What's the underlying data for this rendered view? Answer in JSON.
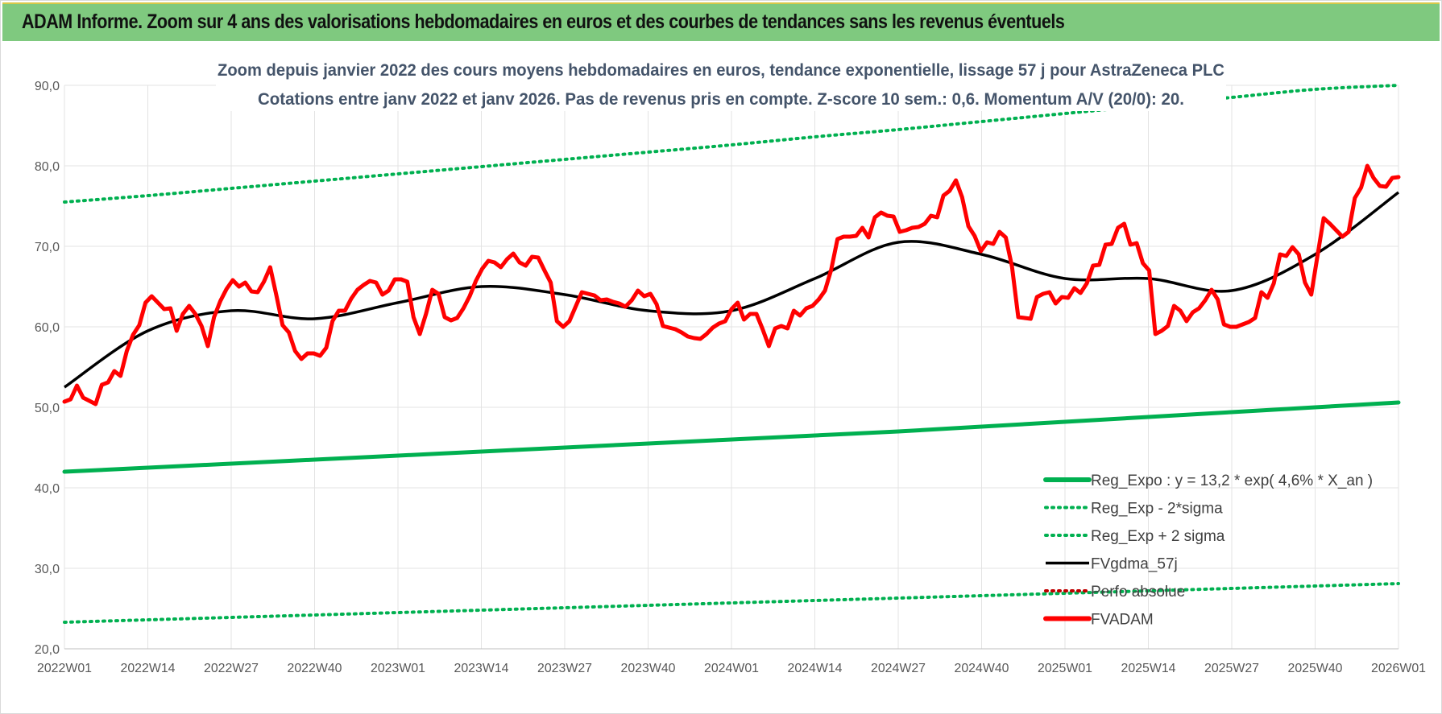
{
  "header": {
    "title": "ADAM Informe. Zoom sur 4 ans des valorisations hebdomadaires en euros et des courbes de tendances sans les revenus éventuels"
  },
  "colors": {
    "banner": "#7fc97f",
    "red_series": "#ff0000",
    "black_series": "#000000",
    "green_series": "#00b050",
    "dotted_green": "#00b050",
    "dotted_red": "#c00000",
    "title_text": "#44546a"
  },
  "chart_data": {
    "type": "line",
    "title_line1": "Zoom depuis janvier 2022 des cours moyens hebdomadaires en euros, tendance exponentielle, lissage 57 j pour AstraZeneca PLC",
    "title_line2": "Cotations entre janv 2022 et janv 2026. Pas de revenus pris en compte. Z-score 10 sem.: 0,6. Momentum A/V (20/0): 20.",
    "ylim": [
      20,
      90
    ],
    "yticks": [
      "20,0",
      "30,0",
      "40,0",
      "50,0",
      "60,0",
      "70,0",
      "80,0",
      "90,0"
    ],
    "ytick_values": [
      20,
      30,
      40,
      50,
      60,
      70,
      80,
      90
    ],
    "xlabels": [
      "2022W01",
      "2022W14",
      "2022W27",
      "2022W40",
      "2023W01",
      "2023W14",
      "2023W27",
      "2023W40",
      "2024W01",
      "2024W14",
      "2024W27",
      "2024W40",
      "2025W01",
      "2025W14",
      "2025W27",
      "2025W40",
      "2026W01"
    ],
    "grid": true,
    "legend_position": "bottom-right",
    "series": [
      {
        "name": "Reg_Expo : y = 13,2 * exp( 4,6% *  X_an )",
        "style": "solid-thick",
        "color": "#00b050",
        "values_at_labels": [
          42.0,
          42.5,
          43.0,
          43.5,
          44.0,
          44.5,
          45.0,
          45.5,
          46.0,
          46.5,
          47.0,
          47.6,
          48.2,
          48.8,
          49.4,
          50.0,
          50.6
        ]
      },
      {
        "name": "Reg_Exp - 2*sigma",
        "style": "dotted",
        "color": "#00b050",
        "values_at_labels": [
          23.3,
          23.6,
          23.9,
          24.2,
          24.5,
          24.8,
          25.1,
          25.4,
          25.7,
          26.0,
          26.3,
          26.6,
          26.9,
          27.2,
          27.5,
          27.8,
          28.1
        ]
      },
      {
        "name": "Reg_Exp + 2 sigma",
        "style": "dotted",
        "color": "#00b050",
        "values_at_labels": [
          75.5,
          76.3,
          77.2,
          78.1,
          79.0,
          79.9,
          80.8,
          81.7,
          82.6,
          83.6,
          84.5,
          85.5,
          86.5,
          87.5,
          88.5,
          89.5,
          90.0
        ]
      },
      {
        "name": "FVgdma_57j",
        "style": "solid",
        "color": "#000000",
        "values_at_labels": [
          52.5,
          59.5,
          62.0,
          61.0,
          63.0,
          65.0,
          64.0,
          62.0,
          62.0,
          66.0,
          70.5,
          69.0,
          66.0,
          66.0,
          64.5,
          69.0,
          76.7
        ]
      },
      {
        "name": "Perfo absolue",
        "style": "dotted",
        "color": "#c00000",
        "values_at_labels": []
      },
      {
        "name": "FVADAM",
        "style": "solid-thick",
        "color": "#ff0000",
        "values_at_labels": [
          50.5,
          62.0,
          65.5,
          56.5,
          65.5,
          68.0,
          62.0,
          60.0,
          62.0,
          63.0,
          73.0,
          70.0,
          63.5,
          67.0,
          61.0,
          66.0,
          78.5
        ],
        "weekly_values": [
          50.7,
          51.0,
          52.7,
          51.2,
          50.8,
          50.4,
          52.8,
          53.1,
          54.5,
          53.9,
          57.0,
          59.0,
          60.2,
          63.0,
          63.8,
          63.0,
          62.2,
          62.3,
          59.5,
          61.6,
          62.6,
          61.6,
          60.1,
          57.6,
          61.2,
          63.2,
          64.7,
          65.8,
          65.0,
          65.5,
          64.4,
          64.3,
          65.6,
          67.4,
          63.9,
          60.2,
          59.3,
          57.0,
          56.0,
          56.7,
          56.7,
          56.4,
          57.4,
          60.7,
          62.0,
          62.0,
          63.5,
          64.6,
          65.2,
          65.7,
          65.5,
          64.0,
          64.5,
          65.9,
          65.9,
          65.6,
          61.2,
          59.1,
          61.6,
          64.6,
          64.1,
          61.2,
          60.8,
          61.1,
          62.3,
          63.8,
          65.7,
          67.2,
          68.2,
          68.0,
          67.4,
          68.4,
          69.1,
          68.0,
          67.6,
          68.7,
          68.6,
          67.0,
          65.5,
          60.7,
          60.0,
          60.7,
          62.5,
          64.3,
          64.1,
          63.9,
          63.3,
          63.4,
          63.1,
          62.9,
          62.5,
          63.3,
          64.5,
          63.8,
          64.1,
          62.8,
          60.1,
          59.9,
          59.7,
          59.3,
          58.8,
          58.6,
          58.5,
          59.1,
          59.9,
          60.4,
          60.7,
          62.2,
          63.0,
          60.9,
          61.6,
          61.6,
          59.7,
          57.6,
          59.8,
          60.1,
          59.8,
          62.0,
          61.4,
          62.3,
          62.6,
          63.4,
          64.5,
          67.1,
          70.9,
          71.2,
          71.2,
          71.3,
          72.3,
          71.1,
          73.6,
          74.2,
          73.8,
          73.7,
          71.8,
          72.0,
          72.3,
          72.4,
          72.8,
          73.8,
          73.6,
          76.3,
          76.9,
          78.2,
          76.1,
          72.5,
          71.3,
          69.4,
          70.5,
          70.3,
          71.8,
          71.1,
          67.5,
          61.2,
          61.1,
          61.0,
          63.7,
          64.1,
          64.3,
          62.9,
          63.7,
          63.6,
          64.8,
          64.2,
          65.4,
          67.6,
          67.7,
          70.2,
          70.3,
          72.3,
          72.8,
          70.2,
          70.4,
          67.9,
          67.0,
          59.1,
          59.5,
          60.1,
          62.6,
          62.0,
          60.7,
          61.8,
          62.3,
          63.3,
          64.6,
          63.4,
          60.3,
          60.0,
          60.0,
          60.3,
          60.6,
          61.1,
          64.3,
          63.6,
          65.4,
          69.0,
          68.8,
          69.9,
          69.0,
          65.5,
          64.0,
          68.8,
          73.5,
          72.8,
          72.0,
          71.2,
          71.8,
          76.0,
          77.3,
          80.0,
          78.5,
          77.5,
          77.4,
          78.5,
          78.6
        ]
      }
    ]
  },
  "legend": {
    "items": [
      "Reg_Expo : y = 13,2 * exp( 4,6% *  X_an )",
      "Reg_Exp - 2*sigma",
      "Reg_Exp + 2 sigma",
      "FVgdma_57j",
      "Perfo absolue",
      "FVADAM"
    ]
  }
}
